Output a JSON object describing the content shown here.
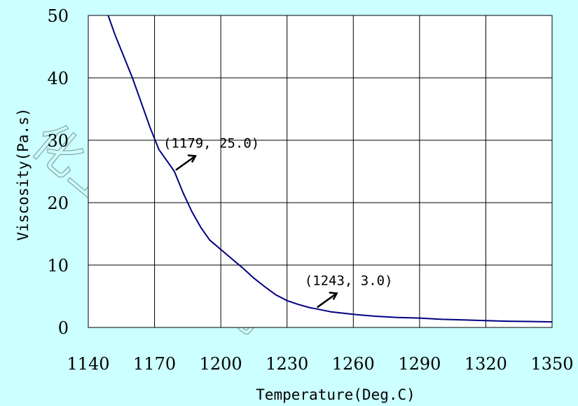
{
  "watermark": "化工技术应用",
  "chart_data": {
    "type": "line",
    "title": "",
    "xlabel": "Temperature(Deg.C)",
    "ylabel": "Viscosity(Pa.s)",
    "xlim": [
      1140,
      1350
    ],
    "ylim": [
      0,
      50
    ],
    "xticks": [
      1140,
      1170,
      1200,
      1230,
      1260,
      1290,
      1320,
      1350
    ],
    "yticks": [
      0,
      10,
      20,
      30,
      40,
      50
    ],
    "grid": true,
    "line_color": "#000080",
    "series": [
      {
        "name": "",
        "x": [
          1149,
          1152,
          1156,
          1160,
          1164,
          1168,
          1172,
          1176,
          1179,
          1183,
          1187,
          1191,
          1195,
          1200,
          1205,
          1210,
          1215,
          1220,
          1225,
          1230,
          1235,
          1240,
          1243,
          1250,
          1260,
          1270,
          1280,
          1290,
          1300,
          1310,
          1320,
          1330,
          1340,
          1350
        ],
        "y": [
          50,
          47,
          43.5,
          40,
          36,
          32,
          28.5,
          26.5,
          25.0,
          21.5,
          18.5,
          16,
          14,
          12.5,
          11,
          9.5,
          7.9,
          6.5,
          5.2,
          4.3,
          3.7,
          3.2,
          3.0,
          2.5,
          2.1,
          1.8,
          1.6,
          1.5,
          1.3,
          1.2,
          1.1,
          1.0,
          0.95,
          0.9
        ]
      }
    ],
    "annotations": [
      {
        "text": "(1179, 25.0)",
        "x": 1179,
        "y": 25.0
      },
      {
        "text": "(1243, 3.0)",
        "x": 1243,
        "y": 3.0
      }
    ]
  }
}
